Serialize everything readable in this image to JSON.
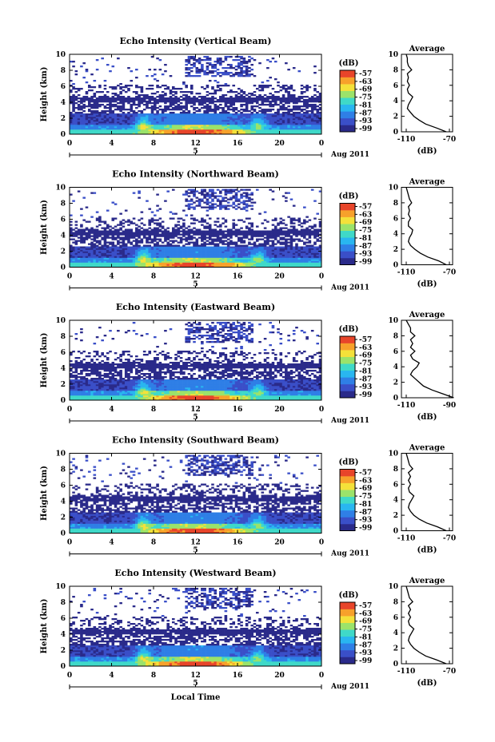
{
  "chart_data": [
    {
      "type": "heatmap",
      "title": "Echo Intensity (Vertical Beam)",
      "ylabel": "Height (km)",
      "xticks": [
        "0",
        "4",
        "8",
        "12",
        "16",
        "20",
        "0"
      ],
      "yticks": [
        "0",
        "2",
        "4",
        "6",
        "8",
        "10"
      ],
      "xlim": [
        0,
        24
      ],
      "ylim": [
        0,
        10
      ],
      "date_marker": "5",
      "date_label": "Aug 2011",
      "colorbar": {
        "unit": "(dB)",
        "ticks": [
          "-57",
          "-63",
          "-69",
          "-75",
          "-81",
          "-87",
          "-93",
          "-99"
        ]
      },
      "average": {
        "title": "Average",
        "xlabel": "(dB)",
        "xticks": [
          "-110",
          "-70"
        ],
        "yticks": [
          "0",
          "2",
          "4",
          "6",
          "8",
          "10"
        ],
        "profile": [
          [
            0,
            -73
          ],
          [
            0.5,
            -82
          ],
          [
            1,
            -92
          ],
          [
            1.5,
            -98
          ],
          [
            2,
            -103
          ],
          [
            2.5,
            -106
          ],
          [
            3,
            -109
          ],
          [
            3.5,
            -108
          ],
          [
            4,
            -106
          ],
          [
            4.5,
            -104
          ],
          [
            5,
            -108
          ],
          [
            5.5,
            -109
          ],
          [
            6,
            -107
          ],
          [
            6.5,
            -109
          ],
          [
            7,
            -108
          ],
          [
            7.5,
            -109
          ],
          [
            8,
            -105
          ],
          [
            8.5,
            -108
          ],
          [
            9,
            -109
          ],
          [
            9.5,
            -109
          ],
          [
            10,
            -110
          ]
        ]
      }
    },
    {
      "type": "heatmap",
      "title": "Echo Intensity (Northward Beam)",
      "ylabel": "Height (km)",
      "xticks": [
        "0",
        "4",
        "8",
        "12",
        "16",
        "20",
        "0"
      ],
      "yticks": [
        "0",
        "2",
        "4",
        "6",
        "8",
        "10"
      ],
      "xlim": [
        0,
        24
      ],
      "ylim": [
        0,
        10
      ],
      "date_marker": "5",
      "date_label": "Aug 2011",
      "colorbar": {
        "unit": "(dB)",
        "ticks": [
          "-57",
          "-63",
          "-69",
          "-75",
          "-81",
          "-87",
          "-93",
          "-99"
        ]
      },
      "average": {
        "title": "Average",
        "xlabel": "(dB)",
        "xticks": [
          "-110",
          "-70"
        ],
        "yticks": [
          "0",
          "2",
          "4",
          "6",
          "8",
          "10"
        ],
        "profile": [
          [
            0,
            -73
          ],
          [
            0.5,
            -80
          ],
          [
            1,
            -90
          ],
          [
            1.5,
            -97
          ],
          [
            2,
            -102
          ],
          [
            2.5,
            -106
          ],
          [
            3,
            -108
          ],
          [
            3.5,
            -107
          ],
          [
            4,
            -105
          ],
          [
            4.5,
            -104
          ],
          [
            5,
            -108
          ],
          [
            5.5,
            -108
          ],
          [
            6,
            -106
          ],
          [
            6.5,
            -108
          ],
          [
            7,
            -107
          ],
          [
            7.5,
            -108
          ],
          [
            8,
            -105
          ],
          [
            8.5,
            -107
          ],
          [
            9,
            -108
          ],
          [
            9.5,
            -109
          ],
          [
            10,
            -110
          ]
        ]
      }
    },
    {
      "type": "heatmap",
      "title": "Echo Intensity (Eastward Beam)",
      "ylabel": "Height (km)",
      "xticks": [
        "0",
        "4",
        "8",
        "12",
        "16",
        "20",
        "0"
      ],
      "yticks": [
        "0",
        "2",
        "4",
        "6",
        "8",
        "10"
      ],
      "xlim": [
        0,
        24
      ],
      "ylim": [
        0,
        10
      ],
      "date_marker": "5",
      "date_label": "Aug 2011",
      "colorbar": {
        "unit": "(dB)",
        "ticks": [
          "-57",
          "-63",
          "-69",
          "-75",
          "-81",
          "-87",
          "-93",
          "-99"
        ]
      },
      "average": {
        "title": "Average",
        "xlabel": "(dB)",
        "xticks": [
          "-110",
          "-90"
        ],
        "yticks": [
          "0",
          "2",
          "4",
          "6",
          "8",
          "10"
        ],
        "profile": [
          [
            0,
            -88
          ],
          [
            0.5,
            -93
          ],
          [
            1,
            -98
          ],
          [
            1.5,
            -102
          ],
          [
            2,
            -104
          ],
          [
            2.5,
            -106
          ],
          [
            3,
            -108
          ],
          [
            3.5,
            -107
          ],
          [
            4,
            -105
          ],
          [
            4.5,
            -104
          ],
          [
            5,
            -107
          ],
          [
            5.5,
            -108
          ],
          [
            6,
            -106
          ],
          [
            6.5,
            -108
          ],
          [
            7,
            -107
          ],
          [
            7.5,
            -108
          ],
          [
            8,
            -106
          ],
          [
            8.5,
            -108
          ],
          [
            9,
            -108
          ],
          [
            9.5,
            -109
          ],
          [
            10,
            -110
          ]
        ]
      }
    },
    {
      "type": "heatmap",
      "title": "Echo Intensity (Southward Beam)",
      "ylabel": "Height (km)",
      "xticks": [
        "0",
        "4",
        "8",
        "12",
        "16",
        "20",
        "0"
      ],
      "yticks": [
        "0",
        "2",
        "4",
        "6",
        "8",
        "10"
      ],
      "xlim": [
        0,
        24
      ],
      "ylim": [
        0,
        10
      ],
      "date_marker": "5",
      "date_label": "Aug 2011",
      "colorbar": {
        "unit": "(dB)",
        "ticks": [
          "-57",
          "-63",
          "-69",
          "-75",
          "-81",
          "-87",
          "-93",
          "-99"
        ]
      },
      "average": {
        "title": "Average",
        "xlabel": "(dB)",
        "xticks": [
          "-110",
          "-70"
        ],
        "yticks": [
          "0",
          "2",
          "4",
          "6",
          "8",
          "10"
        ],
        "profile": [
          [
            0,
            -73
          ],
          [
            0.5,
            -81
          ],
          [
            1,
            -91
          ],
          [
            1.5,
            -98
          ],
          [
            2,
            -103
          ],
          [
            2.5,
            -106
          ],
          [
            3,
            -108
          ],
          [
            3.5,
            -107
          ],
          [
            4,
            -105
          ],
          [
            4.5,
            -103
          ],
          [
            5,
            -107
          ],
          [
            5.5,
            -108
          ],
          [
            6,
            -106
          ],
          [
            6.5,
            -108
          ],
          [
            7,
            -106
          ],
          [
            7.5,
            -108
          ],
          [
            8,
            -104
          ],
          [
            8.5,
            -107
          ],
          [
            9,
            -108
          ],
          [
            9.5,
            -109
          ],
          [
            10,
            -110
          ]
        ]
      }
    },
    {
      "type": "heatmap",
      "title": "Echo Intensity (Westward Beam)",
      "ylabel": "Height (km)",
      "xticks": [
        "0",
        "4",
        "8",
        "12",
        "16",
        "20",
        "0"
      ],
      "yticks": [
        "0",
        "2",
        "4",
        "6",
        "8",
        "10"
      ],
      "xlim": [
        0,
        24
      ],
      "ylim": [
        0,
        10
      ],
      "date_marker": "5",
      "date_label": "Aug 2011",
      "xlabel": "Local Time",
      "colorbar": {
        "unit": "(dB)",
        "ticks": [
          "-57",
          "-63",
          "-69",
          "-75",
          "-81",
          "-87",
          "-93",
          "-99"
        ]
      },
      "average": {
        "title": "Average",
        "xlabel": "(dB)",
        "xticks": [
          "-110",
          "-70"
        ],
        "yticks": [
          "0",
          "2",
          "4",
          "6",
          "8",
          "10"
        ],
        "profile": [
          [
            0,
            -73
          ],
          [
            0.5,
            -82
          ],
          [
            1,
            -92
          ],
          [
            1.5,
            -98
          ],
          [
            2,
            -103
          ],
          [
            2.5,
            -106
          ],
          [
            3,
            -108
          ],
          [
            3.5,
            -107
          ],
          [
            4,
            -105
          ],
          [
            4.5,
            -103
          ],
          [
            5,
            -107
          ],
          [
            5.5,
            -108
          ],
          [
            6,
            -106
          ],
          [
            6.5,
            -108
          ],
          [
            7,
            -106
          ],
          [
            7.5,
            -108
          ],
          [
            8,
            -104
          ],
          [
            8.5,
            -107
          ],
          [
            9,
            -108
          ],
          [
            9.5,
            -109
          ],
          [
            10,
            -110
          ]
        ]
      }
    }
  ],
  "colors": {
    "colormap": [
      "#2a2a8a",
      "#3a4fc8",
      "#2f7fe6",
      "#29b6f0",
      "#3fd9c8",
      "#9be36a",
      "#f4e13a",
      "#f7a12b",
      "#e8452a"
    ]
  }
}
